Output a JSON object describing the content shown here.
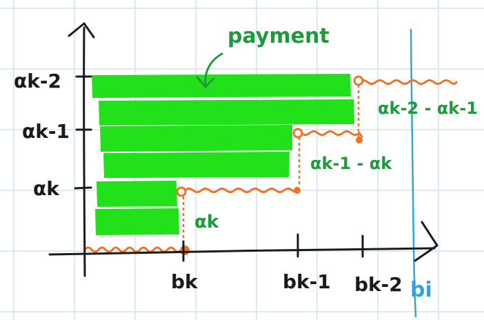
{
  "colors": {
    "grid": "#cfe3f7",
    "axis": "#1a1a1a",
    "payment": "#22e01a",
    "bid_line": "#f07024",
    "label_green": "#1f9a3a",
    "bi_line": "#2fa4dd"
  },
  "annotations": {
    "payment": "payment",
    "diff_k2_k1": "αk-2 - αk-1",
    "diff_k1_k": "αk-1 - αk",
    "alpha_k": "αk"
  },
  "y_axis_labels": [
    "αk-2",
    "αk-1",
    "αk"
  ],
  "x_axis_labels": [
    "bk",
    "bk-1",
    "bk-2"
  ],
  "bi_label": "bi"
}
